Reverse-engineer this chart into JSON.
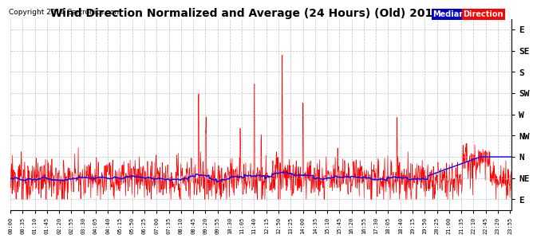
{
  "title": "Wind Direction Normalized and Average (24 Hours) (Old) 20140323",
  "copyright": "Copyright 2014 Cartronics.com",
  "ylabel_ticks": [
    360,
    315,
    270,
    225,
    180,
    135,
    90,
    45,
    0
  ],
  "ylabel_labels": [
    "E",
    "NE",
    "N",
    "NW",
    "W",
    "SW",
    "S",
    "SE",
    "E"
  ],
  "ylim": [
    382.5,
    -22.5
  ],
  "direction_color": "#ff0000",
  "median_color": "#0000ff",
  "background_color": "#ffffff",
  "grid_color": "#b0b0b0",
  "legend_median_bg": "#0000cc",
  "legend_direction_bg": "#ff0000",
  "legend_text_color": "#ffffff",
  "title_fontsize": 10,
  "copyright_fontsize": 6.5,
  "axis_label_fontsize": 8,
  "x_tick_interval_minutes": 35,
  "minutes_per_point": 1,
  "total_minutes": 1440
}
